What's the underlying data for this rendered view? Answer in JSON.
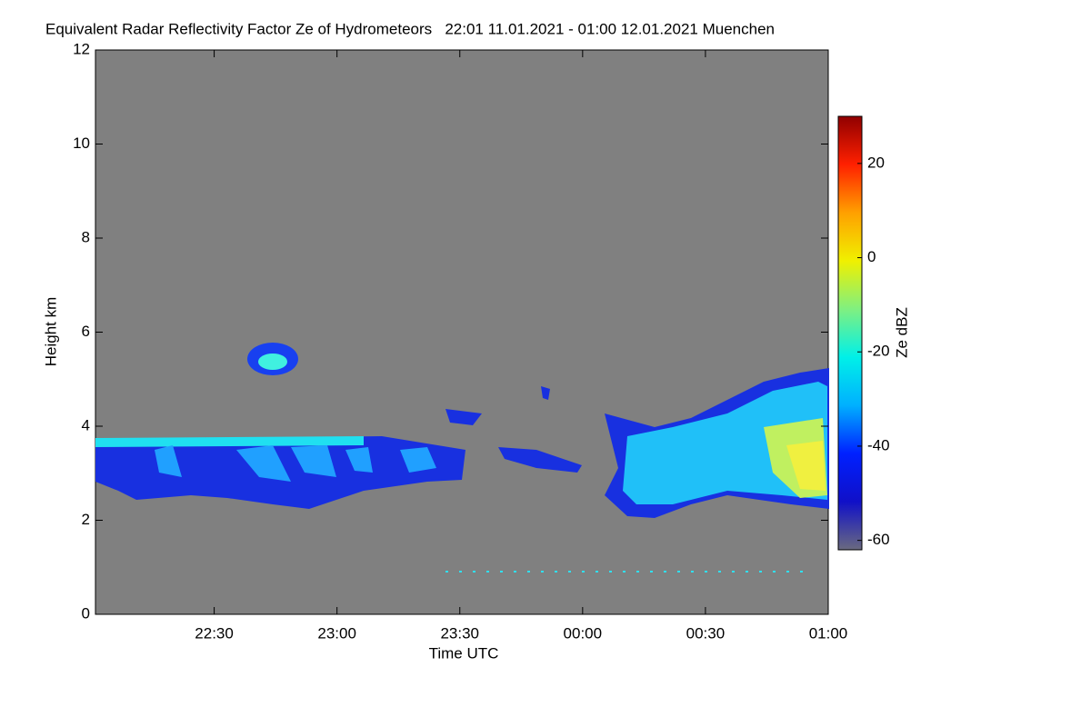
{
  "chart_data": {
    "type": "heatmap",
    "title": "Equivalent Radar Reflectivity Factor Ze of Hydrometeors   22:01 11.01.2021 - 01:00 12.01.2021 Muenchen",
    "x_label": "Time UTC",
    "y_label": "Height km",
    "xlim": [
      1,
      180
    ],
    "xticks": [
      {
        "value": 30,
        "label": "22:30"
      },
      {
        "value": 60,
        "label": "23:00"
      },
      {
        "value": 90,
        "label": "23:30"
      },
      {
        "value": 120,
        "label": "00:00"
      },
      {
        "value": 150,
        "label": "00:30"
      },
      {
        "value": 180,
        "label": "01:00"
      }
    ],
    "ylim": [
      0,
      12
    ],
    "yticks": [
      0,
      2,
      4,
      6,
      8,
      10,
      12
    ],
    "colorbar": {
      "label": "Ze dBZ",
      "lim": [
        -62,
        30
      ],
      "ticks": [
        -60,
        -40,
        -20,
        0,
        20
      ],
      "colormap": [
        "#6a6a80",
        "#1010c8",
        "#0020ff",
        "#00b0ff",
        "#00f0e8",
        "#80f080",
        "#f0f000",
        "#ffa000",
        "#ff2000",
        "#900000"
      ]
    }
  }
}
